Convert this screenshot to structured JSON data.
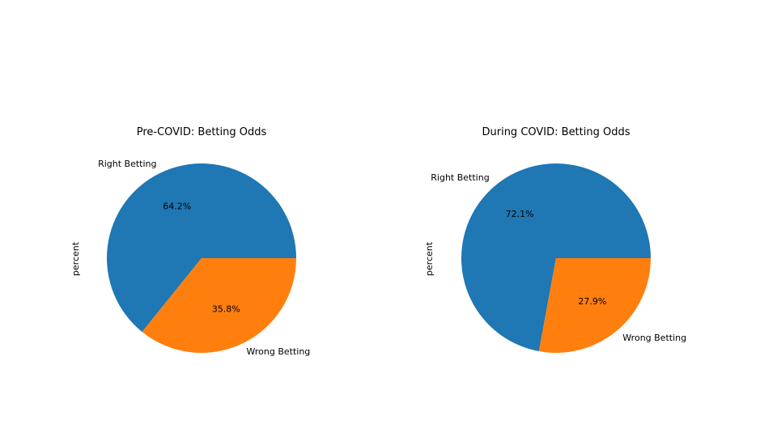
{
  "chart_data": [
    {
      "type": "pie",
      "title": "Pre-COVID: Betting Odds",
      "ylabel": "percent",
      "labels": [
        "Right Betting",
        "Wrong Betting"
      ],
      "values": [
        64.2,
        35.8
      ],
      "autopct": [
        "64.2%",
        "35.8%"
      ],
      "colors": [
        "#1f77b4",
        "#ff7f0e"
      ],
      "start_angle_deg": 0,
      "direction": "counterclockwise"
    },
    {
      "type": "pie",
      "title": "During COVID: Betting Odds",
      "ylabel": "percent",
      "labels": [
        "Right Betting",
        "Wrong Betting"
      ],
      "values": [
        72.1,
        27.9
      ],
      "autopct": [
        "72.1%",
        "27.9%"
      ],
      "colors": [
        "#1f77b4",
        "#ff7f0e"
      ],
      "start_angle_deg": 0,
      "direction": "counterclockwise"
    }
  ]
}
